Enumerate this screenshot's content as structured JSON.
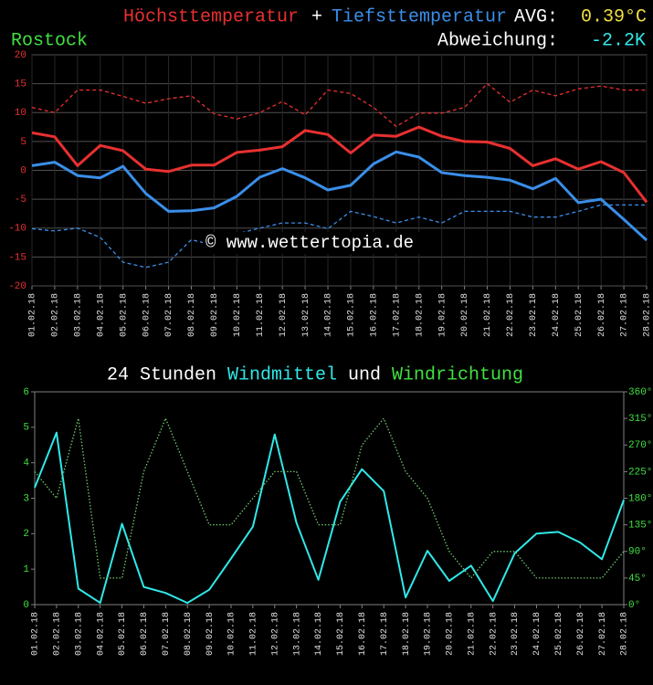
{
  "chart_data": [
    {
      "type": "line",
      "header": {
        "plus": "+",
        "avg_label": "AVG:",
        "avg_value": "0.39°C",
        "location": "Rostock",
        "deviation_label": "Abweichung:",
        "deviation_value": "-2.2K"
      },
      "annotation": "© www.wettertopia.de",
      "categories": [
        "01.02.18",
        "02.02.18",
        "03.02.18",
        "04.02.18",
        "05.02.18",
        "06.02.18",
        "07.02.18",
        "08.02.18",
        "09.02.18",
        "10.02.18",
        "11.02.18",
        "12.02.18",
        "13.02.18",
        "14.02.18",
        "15.02.18",
        "16.02.18",
        "17.02.18",
        "18.02.18",
        "19.02.18",
        "20.02.18",
        "21.02.18",
        "22.02.18",
        "23.02.18",
        "24.02.18",
        "25.02.18",
        "26.02.18",
        "27.02.18",
        "28.02.18"
      ],
      "series": [
        {
          "name": "Höchsttemperatur",
          "color": "#e83030",
          "line_style": "solid",
          "values": [
            6.5,
            5.8,
            0.8,
            4.3,
            3.4,
            0.2,
            -0.2,
            0.9,
            0.9,
            3.1,
            3.5,
            4.1,
            6.9,
            6.2,
            3.0,
            6.1,
            5.9,
            7.5,
            5.9,
            5.0,
            4.9,
            3.8,
            0.8,
            2.0,
            0.2,
            1.5,
            -0.4,
            -5.5
          ]
        },
        {
          "name": "Tiefsttemperatur",
          "color": "#3a8ee8",
          "line_style": "solid",
          "values": [
            0.8,
            1.4,
            -0.9,
            -1.3,
            0.7,
            -4.0,
            -7.1,
            -7.0,
            -6.5,
            -4.5,
            -1.2,
            0.3,
            -1.3,
            -3.4,
            -2.6,
            1.1,
            3.2,
            2.3,
            -0.4,
            -0.9,
            -1.2,
            -1.7,
            -3.2,
            -1.4,
            -5.6,
            -5.0,
            -8.5,
            -12.1
          ]
        },
        {
          "color": "#e83030",
          "line_style": "dashed",
          "values": [
            10.9,
            10.0,
            13.9,
            13.9,
            12.8,
            11.6,
            12.4,
            12.9,
            9.8,
            8.9,
            10.0,
            11.9,
            9.6,
            13.9,
            13.3,
            10.9,
            7.6,
            9.9,
            9.9,
            10.9,
            15.0,
            11.8,
            13.9,
            12.9,
            14.1,
            14.6,
            13.9,
            13.9
          ]
        },
        {
          "color": "#3a8ee8",
          "line_style": "dashed",
          "values": [
            -10.1,
            -10.5,
            -10.0,
            -11.6,
            -15.9,
            -16.8,
            -15.9,
            -12.0,
            -13.0,
            -11.0,
            -10.0,
            -9.1,
            -9.1,
            -10.1,
            -7.1,
            -8.0,
            -9.1,
            -8.1,
            -9.1,
            -7.1,
            -7.1,
            -7.1,
            -8.1,
            -8.1,
            -7.1,
            -6.0,
            -6.0,
            -6.0
          ]
        }
      ],
      "ylim": [
        -20,
        20
      ],
      "yticks": [
        20,
        15,
        10,
        5,
        0,
        -5,
        -10,
        -15,
        -20
      ],
      "tick_color": "#e83030",
      "grid": true
    },
    {
      "type": "line",
      "title_parts": [
        {
          "text": "24 Stunden",
          "color": "#ffffff"
        },
        {
          "text": "Windmittel",
          "color": "#30e8e8"
        },
        {
          "text": "und",
          "color": "#ffffff"
        },
        {
          "text": "Windrichtung",
          "color": "#40e040"
        }
      ],
      "categories": [
        "01.02.18",
        "02.02.18",
        "03.02.18",
        "04.02.18",
        "05.02.18",
        "06.02.18",
        "07.02.18",
        "08.02.18",
        "09.02.18",
        "10.02.18",
        "11.02.18",
        "12.02.18",
        "13.02.18",
        "14.02.18",
        "15.02.18",
        "16.02.18",
        "17.02.18",
        "18.02.18",
        "19.02.18",
        "20.02.18",
        "21.02.18",
        "22.02.18",
        "23.02.18",
        "24.02.18",
        "25.02.18",
        "26.02.18",
        "27.02.18",
        "28.02.18"
      ],
      "series": [
        {
          "name": "Windmittel",
          "color": "#30e8e8",
          "line_style": "solid",
          "values": [
            3.3,
            4.85,
            0.45,
            0.05,
            2.28,
            0.5,
            0.33,
            0.05,
            0.42,
            1.3,
            2.2,
            4.8,
            2.3,
            0.7,
            2.9,
            3.82,
            3.2,
            0.2,
            1.52,
            0.67,
            1.1,
            0.1,
            1.45,
            2.0,
            2.05,
            1.75,
            1.28,
            2.95
          ]
        },
        {
          "name": "Windrichtung",
          "color": "#70c870",
          "line_style": "dotted",
          "axis": "y2",
          "values": [
            225,
            180,
            315,
            45,
            45,
            225,
            315,
            225,
            135,
            135,
            180,
            225,
            225,
            135,
            135,
            270,
            315,
            225,
            180,
            90,
            45,
            90,
            90,
            45,
            45,
            45,
            45,
            90
          ]
        }
      ],
      "ylim": [
        0,
        6
      ],
      "yticks": [
        0,
        1,
        2,
        3,
        4,
        5,
        6
      ],
      "y2lim": [
        0,
        360
      ],
      "y2ticks": [
        {
          "value": 0,
          "label": "0°"
        },
        {
          "value": 45,
          "label": "45°"
        },
        {
          "value": 90,
          "label": "90°"
        },
        {
          "value": 135,
          "label": "135°"
        },
        {
          "value": 180,
          "label": "180°"
        },
        {
          "value": 225,
          "label": "225°"
        },
        {
          "value": 270,
          "label": "270°"
        },
        {
          "value": 315,
          "label": "315°"
        },
        {
          "value": 360,
          "label": "360°"
        }
      ],
      "tick_color": "#40e040",
      "grid": false
    }
  ]
}
